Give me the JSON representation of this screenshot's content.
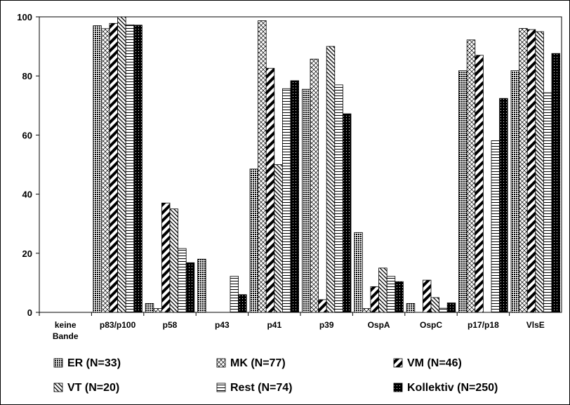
{
  "chart_data": {
    "type": "bar",
    "title": "",
    "xlabel": "",
    "ylabel": "",
    "ylim": [
      0,
      100
    ],
    "yticks": [
      0,
      20,
      40,
      60,
      80,
      100
    ],
    "grid": false,
    "legend_position": "bottom",
    "categories": [
      [
        "keine",
        "Bande"
      ],
      [
        "p83/p100"
      ],
      [
        "p58"
      ],
      [
        "p43"
      ],
      [
        "p41"
      ],
      [
        "p39"
      ],
      [
        "OspA"
      ],
      [
        "OspC"
      ],
      [
        "p17/p18"
      ],
      [
        "VlsE"
      ]
    ],
    "series": [
      {
        "name": "ER (N=33)",
        "pattern": "dots",
        "values": [
          0,
          97,
          3,
          18,
          48.5,
          75.5,
          27,
          3,
          81.8,
          81.8
        ]
      },
      {
        "name": "MK (N=77)",
        "pattern": "crosshatch",
        "values": [
          0,
          96,
          1.3,
          0,
          98.7,
          85.7,
          1.3,
          0,
          92.2,
          96.1
        ]
      },
      {
        "name": "VM (N=46)",
        "pattern": "wide-diagonal",
        "values": [
          0,
          97.8,
          37,
          0,
          82.6,
          4.3,
          8.7,
          10.9,
          87,
          95.7
        ]
      },
      {
        "name": "VT (N=20)",
        "pattern": "back-diagonal",
        "values": [
          0,
          100,
          35,
          0,
          50,
          90,
          15,
          5,
          0,
          95
        ]
      },
      {
        "name": "Rest (N=74)",
        "pattern": "horizontal",
        "values": [
          0,
          97.3,
          21.6,
          12.2,
          75.7,
          77,
          12.2,
          1.4,
          58.1,
          74.3
        ]
      },
      {
        "name": "Kollektiv (N=250)",
        "pattern": "black",
        "values": [
          0,
          97.2,
          16.8,
          6,
          78.4,
          67.2,
          10.4,
          3.2,
          72.4,
          87.6
        ]
      }
    ]
  }
}
